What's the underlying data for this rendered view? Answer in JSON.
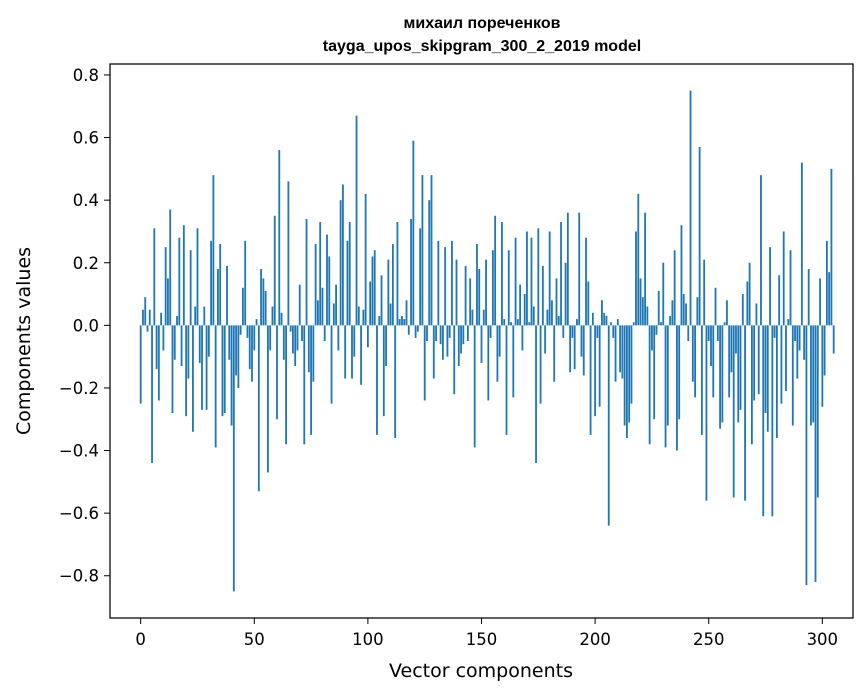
{
  "chart_data": {
    "type": "bar",
    "title": "михаил пореченков",
    "subtitle": "tayga_upos_skipgram_300_2_2019 model",
    "xlabel": "Vector components",
    "ylabel": "Components values",
    "xlim": [
      -13.5,
      313.5
    ],
    "ylim": [
      -0.935,
      0.835
    ],
    "xticks": [
      0,
      50,
      100,
      150,
      200,
      250,
      300
    ],
    "yticks": [
      -0.8,
      -0.6,
      -0.4,
      -0.2,
      0.0,
      0.2,
      0.4,
      0.6,
      0.8
    ],
    "ytick_labels": [
      "−0.8",
      "−0.6",
      "−0.4",
      "−0.2",
      "0.0",
      "0.2",
      "0.4",
      "0.6",
      "0.8"
    ],
    "grid": false,
    "bar_color": "#1f77b4",
    "values": [
      -0.25,
      0.05,
      0.09,
      -0.02,
      0.05,
      -0.44,
      0.31,
      -0.14,
      -0.24,
      0.04,
      -0.08,
      0.25,
      0.15,
      0.37,
      -0.28,
      -0.11,
      0.03,
      0.28,
      -0.13,
      0.32,
      -0.29,
      -0.17,
      0.24,
      -0.34,
      0.06,
      0.31,
      -0.12,
      -0.27,
      0.06,
      -0.27,
      -0.1,
      0.27,
      0.48,
      -0.39,
      0.18,
      0.26,
      -0.29,
      -0.28,
      0.19,
      -0.11,
      -0.32,
      -0.85,
      -0.16,
      -0.2,
      -0.03,
      0.12,
      0.27,
      -0.04,
      -0.14,
      -0.18,
      -0.08,
      0.02,
      -0.53,
      0.18,
      0.15,
      0.11,
      -0.47,
      -0.08,
      0.06,
      0.35,
      -0.3,
      0.56,
      0.04,
      -0.11,
      -0.38,
      0.46,
      -0.02,
      -0.09,
      -0.13,
      -0.08,
      0.13,
      -0.05,
      -0.38,
      0.34,
      -0.15,
      -0.35,
      -0.18,
      0.26,
      0.08,
      0.33,
      0.12,
      -0.05,
      0.29,
      0.22,
      -0.25,
      0.07,
      0.13,
      -0.08,
      0.4,
      0.45,
      -0.17,
      0.27,
      0.33,
      -0.17,
      -0.1,
      0.67,
      0.06,
      -0.19,
      0.05,
      0.42,
      -0.07,
      0.14,
      0.22,
      0.24,
      -0.35,
      0.03,
      0.16,
      -0.29,
      -0.13,
      0.21,
      0.07,
      0.26,
      -0.36,
      0.33,
      0.02,
      0.03,
      0.02,
      0.08,
      -0.03,
      0.34,
      0.59,
      -0.04,
      -0.02,
      0.31,
      0.48,
      -0.24,
      -0.05,
      0.4,
      0.48,
      -0.17,
      -0.05,
      0.27,
      -0.06,
      -0.11,
      0.25,
      -0.1,
      -0.04,
      0.27,
      -0.22,
      0.21,
      -0.13,
      -0.09,
      -0.06,
      0.19,
      -0.05,
      0.15,
      0.05,
      -0.39,
      0.26,
      0.18,
      -0.12,
      0.05,
      0.21,
      -0.24,
      -0.04,
      0.24,
      0.35,
      -0.18,
      -0.1,
      0.33,
      0.02,
      -0.35,
      0.24,
      0.01,
      -0.23,
      0.28,
      0.02,
      0.13,
      -0.08,
      0.1,
      0.3,
      0.01,
      0.28,
      0.06,
      -0.44,
      0.31,
      -0.25,
      0.19,
      -0.09,
      0.05,
      0.3,
      0.08,
      -0.18,
      0.15,
      0.03,
      0.33,
      -0.04,
      0.2,
      0.36,
      -0.15,
      -0.04,
      -0.14,
      0.02,
      0.36,
      -0.1,
      -0.16,
      0.28,
      0.14,
      -0.35,
      0.04,
      -0.29,
      -0.04,
      -0.26,
      0.08,
      0.04,
      0.03,
      -0.64,
      0.01,
      -0.04,
      -0.18,
      0.02,
      -0.15,
      -0.17,
      -0.32,
      -0.36,
      -0.31,
      -0.25,
      0.01,
      0.3,
      0.42,
      0.15,
      0.09,
      0.36,
      0.06,
      -0.38,
      -0.08,
      -0.3,
      -0.03,
      0.11,
      0.01,
      0.2,
      -0.39,
      -0.32,
      0.03,
      0.08,
      0.24,
      -0.4,
      -0.3,
      0.32,
      0.1,
      0.07,
      -0.05,
      0.75,
      -0.18,
      -0.23,
      0.09,
      0.57,
      -0.35,
      0.21,
      -0.56,
      -0.05,
      -0.13,
      -0.23,
      0.12,
      -0.05,
      -0.33,
      -0.31,
      0.01,
      0.08,
      -0.23,
      -0.15,
      -0.55,
      -0.09,
      -0.31,
      -0.27,
      0.1,
      -0.56,
      0.14,
      0.2,
      -0.38,
      -0.24,
      0.07,
      -0.22,
      0.48,
      -0.61,
      -0.28,
      -0.34,
      0.25,
      -0.61,
      -0.04,
      -0.36,
      0.16,
      -0.25,
      0.3,
      -0.21,
      0.02,
      0.24,
      -0.32,
      -0.05,
      -0.17,
      -0.08,
      0.52,
      -0.11,
      -0.83,
      0.18,
      -0.32,
      -0.31,
      -0.82,
      -0.55,
      0.15,
      -0.26,
      -0.16,
      0.27,
      0.17,
      0.5,
      -0.09
    ]
  }
}
